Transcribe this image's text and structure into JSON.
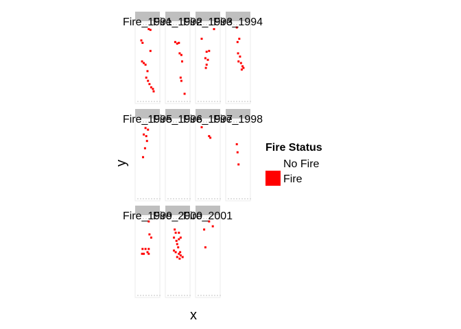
{
  "chart_data": {
    "type": "heatmap",
    "xlabel": "x",
    "ylabel": "y",
    "fill_colors": {
      "No Fire": "#ffffff",
      "Fire": "#ff0000"
    },
    "strip_color": "#bfbfbf",
    "legend": {
      "title": "Fire Status",
      "placement": "right",
      "entries": [
        {
          "label": "No Fire",
          "color": "#ffffff"
        },
        {
          "label": "Fire",
          "color": "#ff0000"
        }
      ]
    },
    "facets": [
      {
        "title": "Fire_1991",
        "fire_cells": [
          [
            0.55,
            0.08
          ],
          [
            0.62,
            0.09
          ],
          [
            0.25,
            0.22
          ],
          [
            0.3,
            0.25
          ],
          [
            0.62,
            0.35
          ],
          [
            0.28,
            0.48
          ],
          [
            0.35,
            0.5
          ],
          [
            0.42,
            0.52
          ],
          [
            0.5,
            0.6
          ],
          [
            0.45,
            0.68
          ],
          [
            0.52,
            0.72
          ],
          [
            0.58,
            0.76
          ],
          [
            0.65,
            0.8
          ],
          [
            0.72,
            0.82
          ],
          [
            0.75,
            0.85
          ]
        ]
      },
      {
        "title": "Fire_1992",
        "fire_cells": [
          [
            0.4,
            0.24
          ],
          [
            0.48,
            0.26
          ],
          [
            0.55,
            0.25
          ],
          [
            0.58,
            0.38
          ],
          [
            0.65,
            0.4
          ],
          [
            0.68,
            0.48
          ],
          [
            0.62,
            0.68
          ],
          [
            0.65,
            0.72
          ],
          [
            0.78,
            0.88
          ]
        ]
      },
      {
        "title": "Fire_1993",
        "fire_cells": [
          [
            0.75,
            0.08
          ],
          [
            0.25,
            0.2
          ],
          [
            0.45,
            0.36
          ],
          [
            0.55,
            0.35
          ],
          [
            0.4,
            0.44
          ],
          [
            0.5,
            0.46
          ],
          [
            0.45,
            0.52
          ],
          [
            0.42,
            0.56
          ]
        ]
      },
      {
        "title": "Fire_1994",
        "fire_cells": [
          [
            0.45,
            0.06
          ],
          [
            0.55,
            0.2
          ],
          [
            0.48,
            0.24
          ],
          [
            0.5,
            0.38
          ],
          [
            0.58,
            0.42
          ],
          [
            0.52,
            0.48
          ],
          [
            0.62,
            0.5
          ],
          [
            0.68,
            0.54
          ],
          [
            0.65,
            0.58
          ],
          [
            0.72,
            0.56
          ]
        ]
      },
      {
        "title": "Fire_1995",
        "fire_cells": [
          [
            0.42,
            0.1
          ],
          [
            0.52,
            0.12
          ],
          [
            0.35,
            0.18
          ],
          [
            0.45,
            0.2
          ],
          [
            0.48,
            0.26
          ],
          [
            0.4,
            0.35
          ],
          [
            0.32,
            0.46
          ]
        ]
      },
      {
        "title": "Fire_1996",
        "fire_cells": []
      },
      {
        "title": "Fire_1997",
        "fire_cells": [
          [
            0.55,
            0.2
          ],
          [
            0.6,
            0.22
          ],
          [
            0.25,
            0.09
          ]
        ]
      },
      {
        "title": "Fire_1998",
        "fire_cells": [
          [
            0.45,
            0.3
          ],
          [
            0.48,
            0.4
          ],
          [
            0.52,
            0.55
          ]
        ]
      },
      {
        "title": "Fire_1999",
        "fire_cells": [
          [
            0.55,
            0.06
          ],
          [
            0.58,
            0.22
          ],
          [
            0.65,
            0.26
          ],
          [
            0.3,
            0.4
          ],
          [
            0.42,
            0.4
          ],
          [
            0.55,
            0.4
          ],
          [
            0.28,
            0.46
          ],
          [
            0.35,
            0.46
          ],
          [
            0.5,
            0.44
          ],
          [
            0.55,
            0.46
          ]
        ]
      },
      {
        "title": "Fire_2000",
        "fire_cells": [
          [
            0.38,
            0.16
          ],
          [
            0.42,
            0.2
          ],
          [
            0.55,
            0.2
          ],
          [
            0.35,
            0.26
          ],
          [
            0.45,
            0.3
          ],
          [
            0.55,
            0.28
          ],
          [
            0.62,
            0.26
          ],
          [
            0.48,
            0.34
          ],
          [
            0.52,
            0.38
          ],
          [
            0.35,
            0.42
          ],
          [
            0.42,
            0.44
          ],
          [
            0.55,
            0.46
          ],
          [
            0.6,
            0.44
          ],
          [
            0.48,
            0.5
          ],
          [
            0.62,
            0.48
          ],
          [
            0.7,
            0.5
          ],
          [
            0.58,
            0.52
          ]
        ]
      },
      {
        "title": "Fire_2001",
        "fire_cells": [
          [
            0.55,
            0.06
          ],
          [
            0.7,
            0.12
          ],
          [
            0.35,
            0.16
          ],
          [
            0.4,
            0.38
          ]
        ]
      }
    ]
  }
}
